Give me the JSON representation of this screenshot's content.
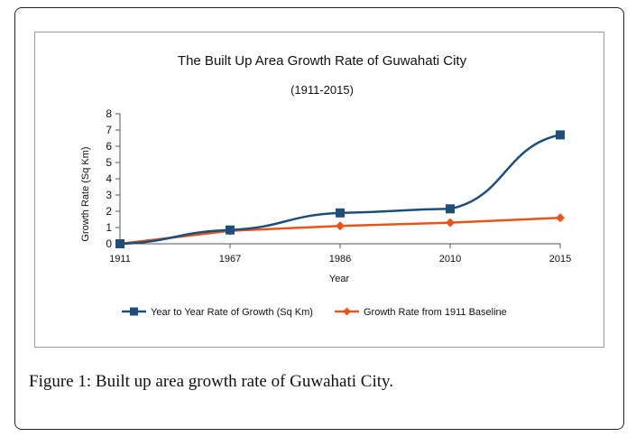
{
  "chart_data": {
    "type": "line",
    "title": "The Built Up Area Growth Rate of Guwahati City",
    "subtitle": "(1911-2015)",
    "xlabel": "Year",
    "ylabel": "Growth Rate (Sq Km)",
    "categories": [
      "1911",
      "1967",
      "1986",
      "2010",
      "2015"
    ],
    "ylim": [
      0,
      8
    ],
    "yticks": [
      "0",
      "1",
      "2",
      "3",
      "4",
      "5",
      "6",
      "7",
      "8"
    ],
    "grid": false,
    "legend_position": "bottom",
    "series": [
      {
        "name": "Year to Year Rate of Growth (Sq Km)",
        "values": [
          0,
          0.85,
          1.9,
          2.15,
          6.7
        ],
        "color": "#1f4e79",
        "marker": "square"
      },
      {
        "name": "Growth Rate from 1911 Baseline",
        "values": [
          0,
          0.8,
          1.1,
          1.3,
          1.6
        ],
        "color": "#e8541a",
        "marker": "diamond"
      }
    ]
  },
  "caption": {
    "label": "Figure 1:",
    "text": " Built up area growth rate of Guwahati City."
  }
}
